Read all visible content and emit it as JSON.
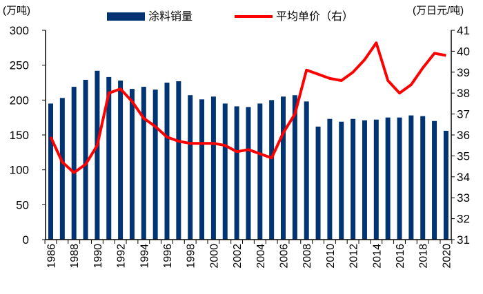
{
  "chart_data": {
    "type": "bar+line",
    "left_unit": "(万吨)",
    "right_unit": "(万日元/吨)",
    "legend_position": "top",
    "categories": [
      "1986",
      "1987",
      "1988",
      "1989",
      "1990",
      "1991",
      "1992",
      "1993",
      "1994",
      "1995",
      "1996",
      "1997",
      "1998",
      "1999",
      "2000",
      "2001",
      "2002",
      "2003",
      "2004",
      "2005",
      "2006",
      "2007",
      "2008",
      "2009",
      "2010",
      "2011",
      "2012",
      "2013",
      "2014",
      "2015",
      "2016",
      "2017",
      "2018",
      "2019",
      "2020"
    ],
    "x_tick_labels": [
      "1986",
      "1988",
      "1990",
      "1992",
      "1994",
      "1996",
      "1998",
      "2000",
      "2002",
      "2004",
      "2006",
      "2008",
      "2010",
      "2012",
      "2014",
      "2016",
      "2018",
      "2020"
    ],
    "series": [
      {
        "name": "涂料销量",
        "type": "bar",
        "axis": "left",
        "color": "#003473",
        "values": [
          195,
          203,
          219,
          229,
          242,
          233,
          228,
          216,
          219,
          215,
          225,
          227,
          207,
          201,
          205,
          195,
          191,
          190,
          195,
          200,
          205,
          207,
          198,
          162,
          173,
          169,
          173,
          171,
          172,
          175,
          175,
          178,
          177,
          170,
          156
        ]
      },
      {
        "name": "平均单价（右）",
        "type": "line",
        "axis": "right",
        "color": "#ff0000",
        "values": [
          35.9,
          34.7,
          34.2,
          34.6,
          35.5,
          38.0,
          38.2,
          37.6,
          36.8,
          36.4,
          35.9,
          35.7,
          35.6,
          35.6,
          35.6,
          35.5,
          35.2,
          35.3,
          35.1,
          34.9,
          36.1,
          37.0,
          39.1,
          38.9,
          38.7,
          38.6,
          39.0,
          39.6,
          40.4,
          38.6,
          38.0,
          38.4,
          39.2,
          39.9,
          39.8
        ]
      }
    ],
    "left_axis": {
      "ylim": [
        0,
        300
      ],
      "ticks": [
        "0",
        "50",
        "100",
        "150",
        "200",
        "250",
        "300"
      ]
    },
    "right_axis": {
      "ylim": [
        31,
        41
      ],
      "ticks": [
        "31",
        "32",
        "33",
        "34",
        "35",
        "36",
        "37",
        "38",
        "39",
        "40",
        "41"
      ]
    },
    "grid": false
  }
}
